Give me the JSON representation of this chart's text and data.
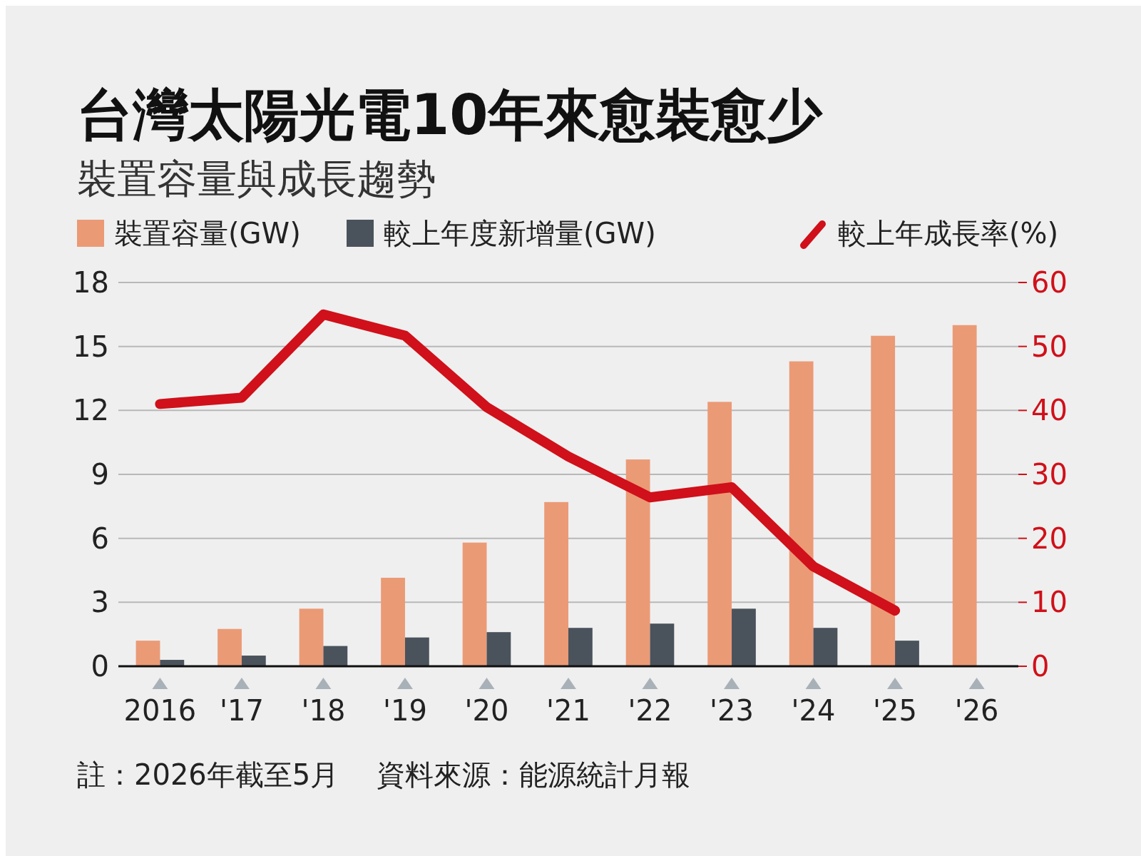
{
  "chart_data": {
    "type": "bar",
    "title": "台灣太陽光電10年來愈裝愈少",
    "subtitle": "裝置容量與成長趨勢",
    "categories": [
      "2016",
      "'17",
      "'18",
      "'19",
      "'20",
      "'21",
      "'22",
      "'23",
      "'24",
      "'25",
      "'26"
    ],
    "series": [
      {
        "name": "裝置容量(GW)",
        "color": "#eb9a76",
        "values": [
          1.2,
          1.75,
          2.7,
          4.15,
          5.8,
          7.7,
          9.7,
          12.4,
          14.3,
          15.5,
          16.0
        ]
      },
      {
        "name": "較上年度新增量(GW)",
        "color": "#4a535c",
        "values": [
          0.3,
          0.5,
          0.95,
          1.35,
          1.6,
          1.8,
          2.0,
          2.7,
          1.8,
          1.2,
          null
        ]
      },
      {
        "name": "較上年成長率(%)",
        "color": "#d0101a",
        "type": "line",
        "axis": "y2",
        "values": [
          41,
          42,
          55,
          51.7,
          40.5,
          32.8,
          26.4,
          28,
          15.6,
          8.7,
          null
        ]
      }
    ],
    "ylim": [
      0,
      18
    ],
    "yticks": [
      0,
      3,
      6,
      9,
      12,
      15,
      18
    ],
    "y2lim": [
      0,
      60
    ],
    "y2ticks": [
      0,
      10,
      20,
      30,
      40,
      50,
      60
    ],
    "grid": "y",
    "legend": "top",
    "annotations": [
      "註：2026年截至5月",
      "資料來源：能源統計月報"
    ]
  }
}
